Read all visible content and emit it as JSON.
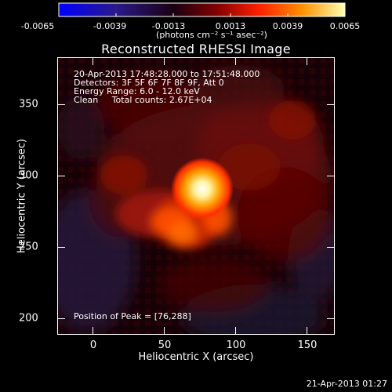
{
  "colorbar": {
    "tick_labels": [
      "-0.0065",
      "-0.0039",
      "-0.0013",
      "0.0013",
      "0.0039",
      "0.0065"
    ],
    "units": "(photons cm⁻² s⁻¹ asec⁻²)",
    "colors": [
      "#0000ff",
      "#000000",
      "#800000",
      "#ff2000",
      "#ff8000",
      "#ffff80"
    ]
  },
  "title": "Reconstructed RHESSI Image",
  "info": {
    "time_range": "20-Apr-2013 17:48:28.000 to 17:51:48.000",
    "detectors": "Detectors: 3F 5F 6F 7F 8F 9F, Att 0",
    "energy_range": "Energy Range: 6.0 - 12.0 keV",
    "clean_counts": "Clean     Total counts: 2.67E+04"
  },
  "peak_text": "Position of Peak = [76,288]",
  "axes": {
    "x_label": "Heliocentric X (arcsec)",
    "y_label": "Heliocentric Y (arcsec)",
    "x_ticks": [
      "0",
      "50",
      "100",
      "150"
    ],
    "y_ticks": [
      "200",
      "250",
      "300",
      "350"
    ],
    "x_range": [
      -23,
      170
    ],
    "y_range": [
      190,
      383
    ]
  },
  "footer_date": "21-Apr-2013 01:27"
}
